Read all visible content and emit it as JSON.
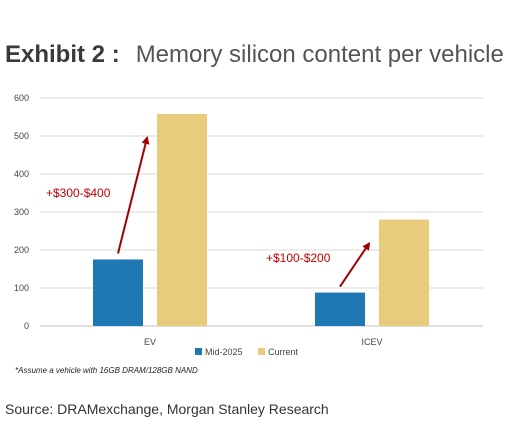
{
  "header": {
    "exhibit_label": "Exhibit 2 :",
    "title": "Memory silicon content per vehicle"
  },
  "chart_data": {
    "type": "bar",
    "title": "Memory silicon content per vehicle",
    "categories": [
      "EV",
      "ICEV"
    ],
    "series": [
      {
        "name": "Mid-2025",
        "values": [
          175,
          88
        ],
        "color": "#1f77b4"
      },
      {
        "name": "Current",
        "values": [
          558,
          280
        ],
        "color": "#e8cb7d"
      }
    ],
    "ylim": [
      0,
      600
    ],
    "yticks": [
      0,
      100,
      200,
      300,
      400,
      500,
      600
    ],
    "grid": true,
    "legend_position": "bottom",
    "annotations": [
      {
        "text": "+$300-$400",
        "category": "EV",
        "color": "#c00000"
      },
      {
        "text": "+$100-$200",
        "category": "ICEV",
        "color": "#c00000"
      }
    ]
  },
  "footnote": "*Assume a vehicle with 16GB DRAM/128GB NAND",
  "source": "Source: DRAMexchange, Morgan Stanley Research"
}
